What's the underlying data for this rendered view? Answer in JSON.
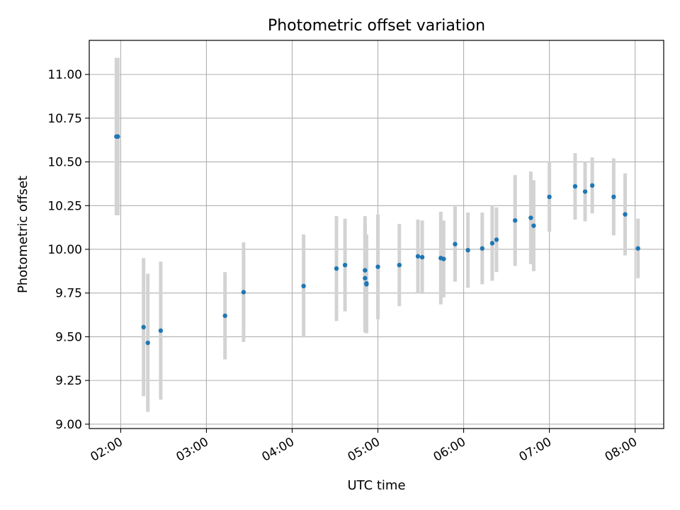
{
  "chart_data": {
    "type": "scatter",
    "title": "Photometric offset variation",
    "xlabel": "UTC time",
    "ylabel": "Photometric offset",
    "x_format": "HH:MM",
    "xlim": [
      "01:38",
      "08:20"
    ],
    "ylim": [
      8.975,
      11.195
    ],
    "x_ticks": [
      "02:00",
      "03:00",
      "04:00",
      "05:00",
      "06:00",
      "07:00",
      "08:00"
    ],
    "y_ticks": [
      "9.00",
      "9.25",
      "9.50",
      "9.75",
      "10.00",
      "10.25",
      "10.50",
      "10.75",
      "11.00"
    ],
    "grid": true,
    "legend": "none",
    "colors": {
      "points": "#1f77b4",
      "error_bars": "#d3d3d3",
      "grid": "#b0b0b0"
    },
    "series": [
      {
        "x": [
          "01:57",
          "01:58",
          "02:16",
          "02:19",
          "02:28",
          "03:13",
          "03:26",
          "04:08",
          "04:31",
          "04:37",
          "04:51",
          "04:51",
          "04:52",
          "04:52",
          "05:00",
          "05:15",
          "05:28",
          "05:31",
          "05:44",
          "05:46",
          "05:54",
          "06:03",
          "06:13",
          "06:20",
          "06:23",
          "06:36",
          "06:47",
          "06:49",
          "07:00",
          "07:18",
          "07:25",
          "07:30",
          "07:45",
          "07:53",
          "08:02"
        ],
        "y": [
          10.645,
          10.645,
          9.555,
          9.465,
          9.535,
          9.62,
          9.755,
          9.79,
          9.89,
          9.91,
          9.88,
          9.835,
          9.805,
          9.8,
          9.9,
          9.91,
          9.96,
          9.955,
          9.95,
          9.945,
          10.03,
          9.995,
          10.005,
          10.035,
          10.055,
          10.165,
          10.18,
          10.135,
          10.3,
          10.36,
          10.33,
          10.365,
          10.3,
          10.2,
          10.005
        ],
        "yerr": [
          0.45,
          0.45,
          0.395,
          0.395,
          0.395,
          0.25,
          0.285,
          0.295,
          0.3,
          0.265,
          0.31,
          0.31,
          0.28,
          0.28,
          0.3,
          0.235,
          0.21,
          0.21,
          0.265,
          0.22,
          0.215,
          0.215,
          0.205,
          0.215,
          0.185,
          0.26,
          0.265,
          0.26,
          0.2,
          0.19,
          0.17,
          0.16,
          0.22,
          0.235,
          0.17
        ]
      }
    ]
  }
}
